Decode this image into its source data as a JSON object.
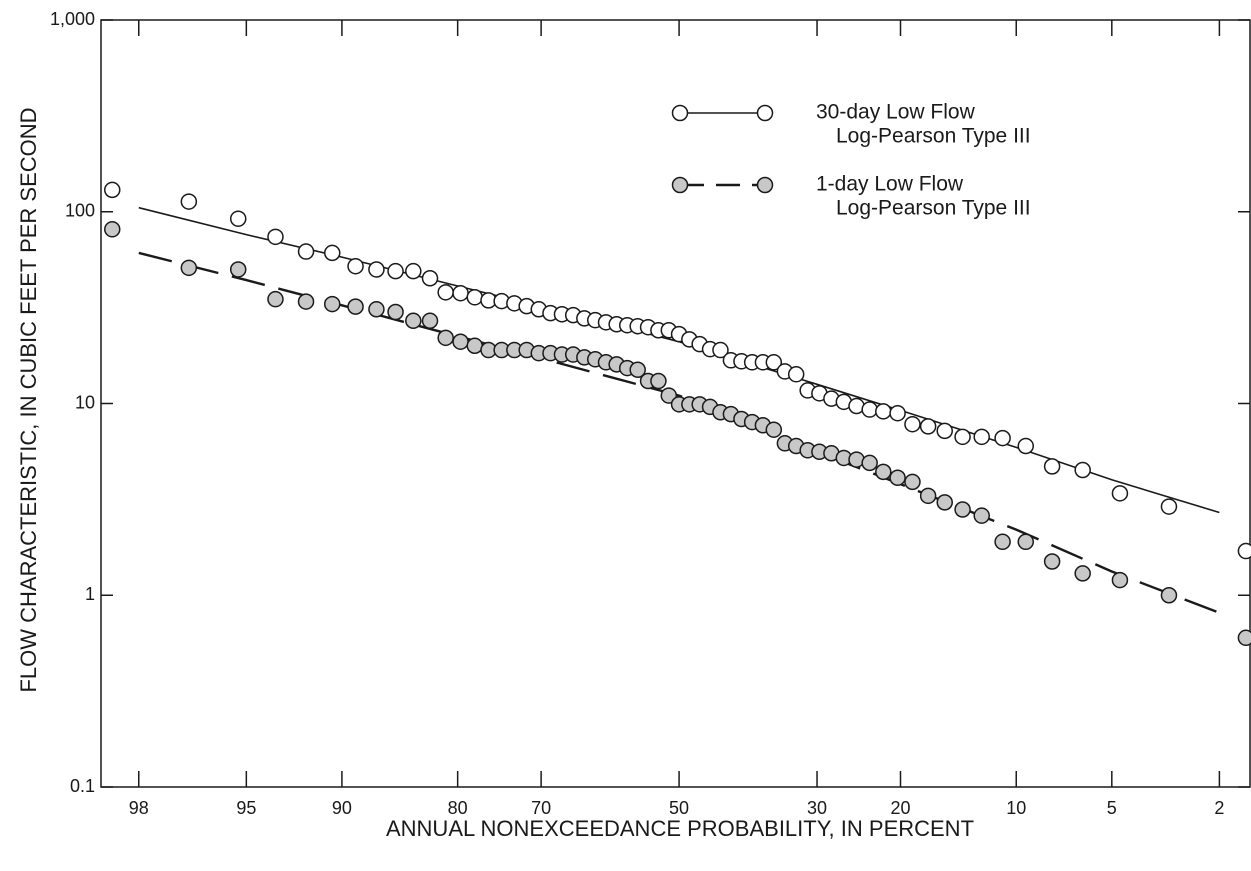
{
  "chart_data": {
    "type": "probability",
    "xscale": "normal-probability",
    "yscale": "log",
    "xlabel": "ANNUAL NONEXCEEDANCE PROBABILITY, IN PERCENT",
    "ylabel": "FLOW CHARACTERISTIC, IN CUBIC FEET PER SECOND",
    "xlim": [
      98.6,
      1.5
    ],
    "ylim": [
      0.1,
      1000
    ],
    "xticks": [
      98,
      95,
      90,
      80,
      70,
      50,
      30,
      20,
      10,
      5,
      2
    ],
    "yticks": [
      0.1,
      1,
      10,
      100,
      {
        "value": 1000,
        "label": "1,000"
      }
    ],
    "x": [
      98.44,
      96.88,
      95.31,
      93.75,
      92.19,
      90.63,
      89.06,
      87.5,
      85.94,
      84.38,
      82.81,
      81.25,
      79.69,
      78.13,
      76.56,
      75,
      73.44,
      71.88,
      70.31,
      68.75,
      67.19,
      65.63,
      64.06,
      62.5,
      60.94,
      59.38,
      57.81,
      56.25,
      54.69,
      53.13,
      51.56,
      50,
      48.44,
      46.88,
      45.31,
      43.75,
      42.19,
      40.63,
      39.06,
      37.5,
      35.94,
      34.38,
      32.81,
      31.25,
      29.69,
      28.13,
      26.56,
      25,
      23.44,
      21.88,
      20.31,
      18.75,
      17.19,
      15.63,
      14.06,
      12.5,
      10.94,
      9.38,
      7.81,
      6.25,
      4.69,
      3.13,
      1.56
    ],
    "fit_x": [
      98,
      95,
      90,
      80,
      70,
      50,
      30,
      20,
      10,
      5,
      2
    ],
    "series": [
      {
        "name": "30-day Low Flow",
        "color": "#ffffff",
        "values": [
          130,
          113,
          92,
          74,
          62,
          61,
          52,
          50,
          49,
          49,
          45,
          38,
          37.6,
          35.8,
          34.5,
          34.2,
          33.3,
          32.2,
          31,
          29.6,
          29.2,
          28.9,
          27.8,
          27.2,
          26.5,
          25.9,
          25.6,
          25.3,
          25,
          24.1,
          24.1,
          23,
          21.6,
          20.4,
          19.2,
          19,
          16.8,
          16.6,
          16.4,
          16.4,
          16.4,
          14.7,
          14.2,
          11.7,
          11.3,
          10.6,
          10.2,
          9.7,
          9.3,
          9.1,
          8.9,
          7.8,
          7.6,
          7.2,
          6.7,
          6.7,
          6.6,
          6,
          4.7,
          4.5,
          3.4,
          2.9,
          1.7
        ],
        "fit": {
          "name": "Log-Pearson Type III",
          "dash": "none",
          "values": [
            105,
            76,
            58,
            41,
            32,
            21,
            12.6,
            9.2,
            5.9,
            4,
            2.7
          ]
        }
      },
      {
        "name": "1-day Low Flow",
        "color": "#c8c8c8",
        "values": [
          81,
          51,
          50,
          35,
          34,
          33,
          32,
          31,
          30,
          27,
          27,
          22,
          21,
          20,
          19,
          19,
          19,
          19,
          18.3,
          18.3,
          18,
          18,
          17.4,
          17,
          16.4,
          16,
          15.3,
          15,
          13.1,
          13.1,
          11,
          9.9,
          9.9,
          9.9,
          9.6,
          9,
          8.8,
          8.3,
          8,
          7.7,
          7.3,
          6.2,
          6,
          5.7,
          5.6,
          5.5,
          5.2,
          5.1,
          4.9,
          4.4,
          4.1,
          3.9,
          3.3,
          3.05,
          2.8,
          2.6,
          1.9,
          1.9,
          1.5,
          1.3,
          1.2,
          1,
          0.6
        ],
        "fit": {
          "name": "Log-Pearson Type III",
          "dash": "34 14",
          "values": [
            61,
            44,
            32.5,
            22.4,
            17.2,
            11,
            5.6,
            3.8,
            2.2,
            1.33,
            0.81
          ]
        }
      }
    ]
  }
}
